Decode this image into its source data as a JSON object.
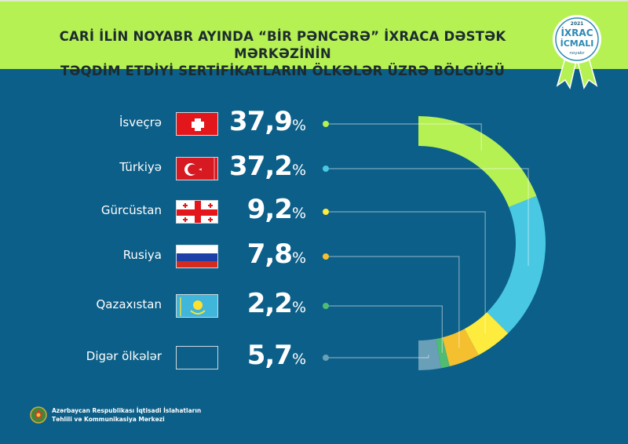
{
  "header": {
    "title_line1": "CARİ İLİN NOYABR AYINDA “BİR PƏNCƏRƏ” İXRACA DƏSTƏK MƏRKƏZİNİN",
    "title_line2": "TƏQDİM ETDİYİ SERTİFİKATLARIN ÖLKƏLƏR ÜZRƏ BÖLGÜSÜ"
  },
  "badge": {
    "year": "2021",
    "line1": "İXRAC",
    "line2": "İCMALI",
    "month": "noyabr"
  },
  "footer": {
    "line1": "Azərbaycan Respublikası İqtisadi İslahatların",
    "line2": "Təhlili və Kommunikasiya Mərkəzi"
  },
  "colors": {
    "background": "#0c5f88",
    "header": "#b5f153"
  },
  "chart_data": {
    "type": "pie",
    "style": "half-donut",
    "unit": "%",
    "categories": [
      "İsveçrə",
      "Türkiyə",
      "Gürcüstan",
      "Rusiya",
      "Qazaxıstan",
      "Digər ölkələr"
    ],
    "values": [
      37.9,
      37.2,
      9.2,
      7.8,
      2.2,
      5.7
    ],
    "labels": [
      "37,9",
      "37,2",
      "9,2",
      "7,8",
      "2,2",
      "5,7"
    ],
    "colors": [
      "#b5f153",
      "#48c8e2",
      "#fdeb3e",
      "#f4c02f",
      "#4fbb73",
      "#6a9fb8"
    ],
    "flags": [
      "switzerland-flag",
      "turkey-flag",
      "georgia-flag",
      "russia-flag",
      "kazakhstan-flag",
      "blank-flag"
    ]
  }
}
